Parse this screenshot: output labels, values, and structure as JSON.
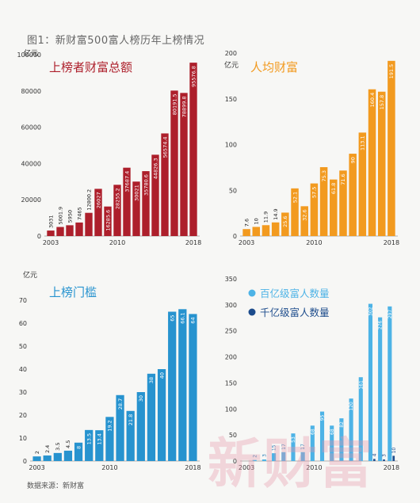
{
  "figure": {
    "title": "图1：新财富500富人榜历年上榜情况",
    "source": "数据来源：新财富",
    "watermark": "新财富"
  },
  "chart_data": [
    {
      "type": "bar",
      "title": "上榜者财富总额",
      "ylabel": "亿元",
      "color": "#ad1f2b",
      "ylim": [
        0,
        100000
      ],
      "yticks": [
        "0",
        "20000",
        "40000",
        "60000",
        "80000",
        "100000"
      ],
      "ytick_values": [
        0,
        20000,
        40000,
        60000,
        80000,
        100000
      ],
      "x_tick_labels": [
        "2003",
        "2010",
        "2018"
      ],
      "categories": [
        "2003",
        "2004",
        "2005",
        "2006",
        "2007",
        "2008",
        "2009",
        "2010",
        "2011",
        "2012",
        "2013",
        "2014",
        "2015",
        "2016",
        "2017",
        "2018"
      ],
      "values": [
        3031,
        5001.9,
        5950,
        7465,
        12800.2,
        26027,
        16285.6,
        28255.2,
        37687.4,
        30021,
        35780.6,
        44826.3,
        56574.4,
        80191.5,
        78899.8,
        95576.8
      ],
      "labels": [
        "3031",
        "5001.9",
        "5950",
        "7465",
        "12800.2",
        "26027",
        "16285.6",
        "28255.2",
        "37687.4",
        "30021",
        "35780.6",
        "44826.3",
        "56574.4",
        "80191.5",
        "78899.8",
        "95576.8"
      ]
    },
    {
      "type": "bar",
      "title": "人均财富",
      "ylabel": "亿元",
      "color": "#f29a1f",
      "ylim": [
        0,
        200
      ],
      "yticks": [
        "0",
        "50",
        "100",
        "150",
        "200"
      ],
      "ytick_values": [
        0,
        50,
        100,
        150,
        200
      ],
      "x_tick_labels": [
        "2003",
        "2010",
        "2018"
      ],
      "categories": [
        "2003",
        "2004",
        "2005",
        "2006",
        "2007",
        "2008",
        "2009",
        "2010",
        "2011",
        "2012",
        "2013",
        "2014",
        "2015",
        "2016",
        "2017",
        "2018"
      ],
      "values": [
        7.6,
        10,
        11.9,
        14.9,
        25.6,
        52.1,
        32.6,
        57.5,
        75.3,
        61.8,
        71.6,
        90,
        113.1,
        160.4,
        157.8,
        191.5
      ],
      "labels": [
        "7.6",
        "10",
        "11.9",
        "14.9",
        "25.6",
        "52.1",
        "32.6",
        "57.5",
        "75.3",
        "61.8",
        "71.6",
        "90",
        "113.1",
        "160.4",
        "157.8",
        "191.5"
      ]
    },
    {
      "type": "bar",
      "title": "上榜门槛",
      "ylabel": "亿元",
      "color": "#2793cf",
      "ylim": [
        0,
        70
      ],
      "yticks": [
        "0",
        "10",
        "20",
        "30",
        "40",
        "50",
        "60",
        "70"
      ],
      "ytick_values": [
        0,
        10,
        20,
        30,
        40,
        50,
        60,
        70
      ],
      "x_tick_labels": [
        "2003",
        "2010",
        "2018"
      ],
      "categories": [
        "2003",
        "2004",
        "2005",
        "2006",
        "2007",
        "2008",
        "2009",
        "2010",
        "2011",
        "2012",
        "2013",
        "2014",
        "2015",
        "2016",
        "2017",
        "2018"
      ],
      "values": [
        2,
        2.4,
        3.5,
        4.5,
        8,
        13.5,
        13.4,
        19.2,
        28.7,
        21.8,
        30,
        38,
        40,
        65,
        66.1,
        64
      ],
      "labels": [
        "2",
        "2.4",
        "3.5",
        "4.5",
        "8",
        "13.5",
        "13.4",
        "19.2",
        "28.7",
        "21.8",
        "30",
        "38",
        "40",
        "65",
        "66.1",
        "64"
      ]
    },
    {
      "type": "bar",
      "ylim": [
        0,
        350
      ],
      "yticks": [
        "0",
        "50",
        "100",
        "150",
        "200",
        "250",
        "300",
        "350"
      ],
      "ytick_values": [
        0,
        50,
        100,
        150,
        200,
        250,
        300,
        350
      ],
      "x_tick_labels": [
        "2003",
        "2010",
        "2018"
      ],
      "legend_position": "top-left",
      "categories": [
        "2003",
        "2004",
        "2005",
        "2006",
        "2007",
        "2008",
        "2009",
        "2010",
        "2011",
        "2012",
        "2013",
        "2014",
        "2015",
        "2016",
        "2017",
        "2018"
      ],
      "series": [
        {
          "name": "百亿级富人数量",
          "color": "#4db3e6",
          "values": [
            0,
            2,
            3,
            15,
            17,
            53,
            17,
            68,
            95,
            68,
            82,
            120,
            161,
            302,
            276,
            297
          ],
          "labels": [
            "",
            "2",
            "3",
            "15",
            "17",
            "53",
            "17",
            "68",
            "95",
            "68",
            "82",
            "120",
            "161",
            "302",
            "276",
            "297"
          ]
        },
        {
          "name": "千亿级富人数量",
          "color": "#1d4c8c",
          "values": [
            0,
            0,
            0,
            0,
            0,
            0,
            0,
            0,
            0,
            0,
            0,
            0,
            0,
            4,
            3,
            10
          ],
          "labels": [
            "",
            "",
            "",
            "",
            "",
            "",
            "",
            "",
            "",
            "",
            "",
            "",
            "",
            "4",
            "3",
            "10"
          ]
        }
      ]
    }
  ]
}
